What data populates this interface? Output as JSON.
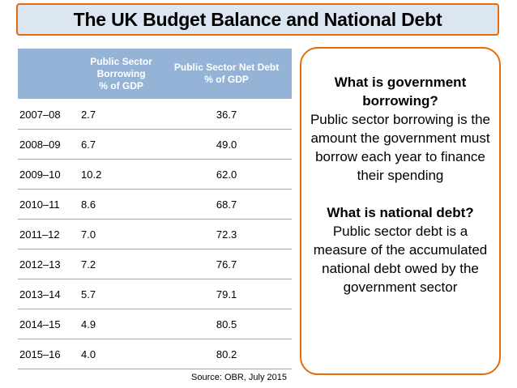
{
  "title": "The UK Budget Balance and National Debt",
  "table": {
    "headers": {
      "year": "",
      "borrowing": "Public Sector\nBorrowing\n% of GDP",
      "debt": "Public Sector Net Debt\n% of GDP"
    },
    "rows": [
      {
        "year": "2007–08",
        "borrowing": "2.7",
        "debt": "36.7"
      },
      {
        "year": "2008–09",
        "borrowing": "6.7",
        "debt": "49.0"
      },
      {
        "year": "2009–10",
        "borrowing": "10.2",
        "debt": "62.0"
      },
      {
        "year": "2010–11",
        "borrowing": "8.6",
        "debt": "68.7"
      },
      {
        "year": "2011–12",
        "borrowing": "7.0",
        "debt": "72.3"
      },
      {
        "year": "2012–13",
        "borrowing": "7.2",
        "debt": "76.7"
      },
      {
        "year": "2013–14",
        "borrowing": "5.7",
        "debt": "79.1"
      },
      {
        "year": "2014–15",
        "borrowing": "4.9",
        "debt": "80.5"
      },
      {
        "year": "2015–16",
        "borrowing": "4.0",
        "debt": "80.2"
      }
    ]
  },
  "source": "Source: OBR, July 2015",
  "info": {
    "q1": "What is government borrowing?",
    "a1": "Public sector borrowing is the amount the government must borrow each year to finance their spending",
    "q2": "What is national debt?",
    "a2": "Public sector debt is a measure of the accumulated national debt owed by the government sector"
  },
  "colors": {
    "accent_border": "#e46c0a",
    "title_bg": "#dce6f2",
    "header_bg": "#95b3d7"
  }
}
